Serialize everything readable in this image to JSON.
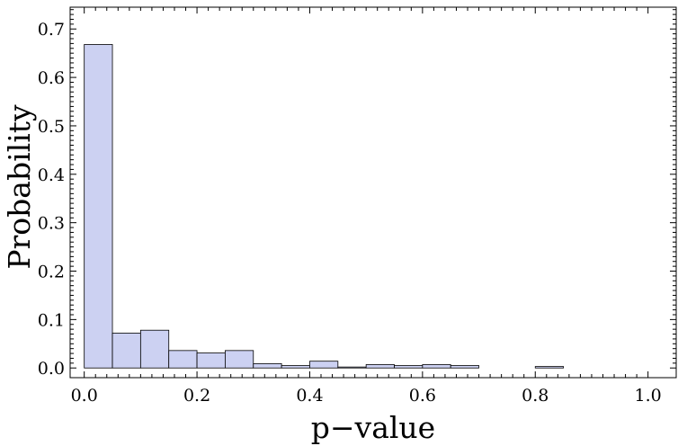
{
  "chart_data": {
    "type": "bar",
    "subtype": "histogram",
    "title": "",
    "xlabel": "p−value",
    "ylabel": "Probability",
    "xlim": [
      -0.025,
      1.05
    ],
    "ylim": [
      -0.02,
      0.745
    ],
    "bin_width": 0.05,
    "bin_starts": [
      0.0,
      0.05,
      0.1,
      0.15,
      0.2,
      0.25,
      0.3,
      0.35,
      0.4,
      0.45,
      0.5,
      0.55,
      0.6,
      0.65,
      0.7,
      0.75,
      0.8,
      0.85,
      0.9,
      0.95,
      1.0
    ],
    "values": [
      0.668,
      0.072,
      0.078,
      0.036,
      0.031,
      0.036,
      0.009,
      0.005,
      0.014,
      0.002,
      0.007,
      0.005,
      0.007,
      0.005,
      0.0,
      0.0,
      0.003,
      0.0,
      0.0,
      0.0,
      0.0
    ],
    "x_ticks": [
      0.0,
      0.2,
      0.4,
      0.6,
      0.8,
      1.0
    ],
    "x_tick_labels": [
      "0.0",
      "0.2",
      "0.4",
      "0.6",
      "0.8",
      "1.0"
    ],
    "y_ticks": [
      0.0,
      0.1,
      0.2,
      0.3,
      0.4,
      0.5,
      0.6,
      0.7
    ],
    "y_tick_labels": [
      "0.0",
      "0.1",
      "0.2",
      "0.3",
      "0.4",
      "0.5",
      "0.6",
      "0.7"
    ],
    "grid": false,
    "legend": "none",
    "bar_color": "#ccd1f2"
  }
}
